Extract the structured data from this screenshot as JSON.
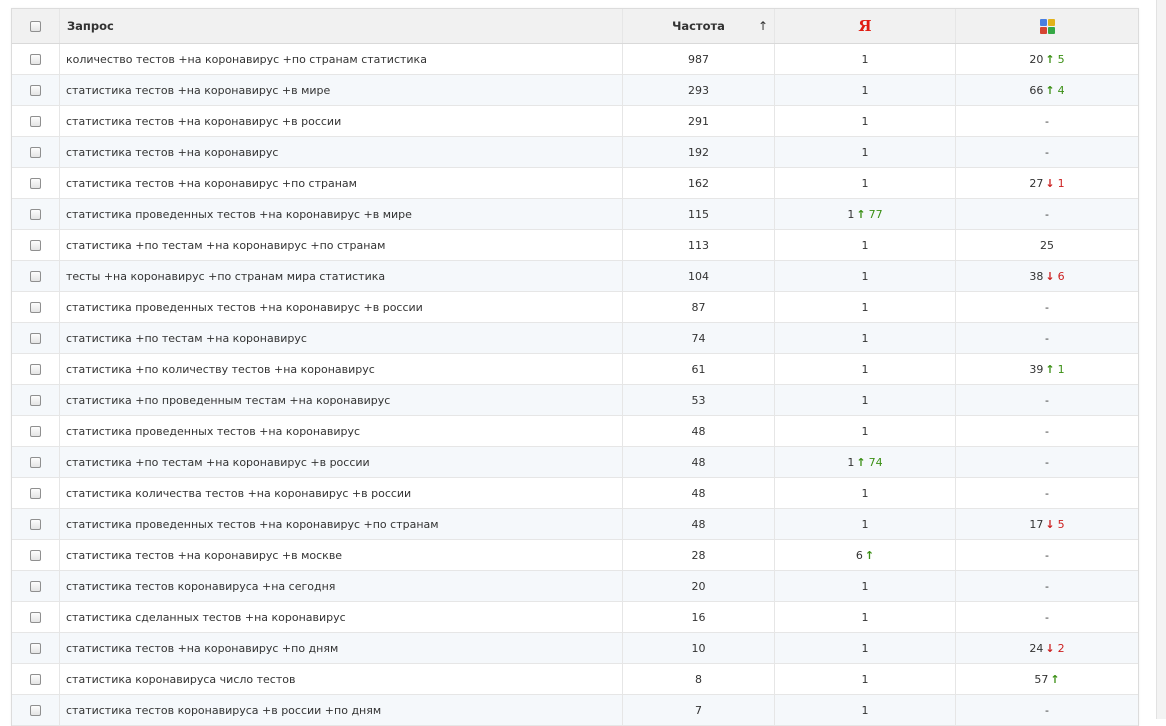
{
  "header": {
    "query_label": "Запрос",
    "frequency_label": "Частота",
    "sort_arrow": "↑",
    "yandex_label": "Я",
    "google_icon": "google-search-icon"
  },
  "colors": {
    "up": "#3a8f14",
    "down": "#cc2020",
    "yandex": "#e01b10",
    "google": [
      "#4a7fe0",
      "#e2b21a",
      "#d64532",
      "#35a845"
    ]
  },
  "rows": [
    {
      "query": "количество тестов +на коронавирус +по странам статистика",
      "frequency": "987",
      "yandex": {
        "pos": "1",
        "dir": "",
        "delta": ""
      },
      "google": {
        "pos": "20",
        "dir": "up",
        "delta": "5"
      }
    },
    {
      "query": "статистика тестов +на коронавирус +в мире",
      "frequency": "293",
      "yandex": {
        "pos": "1",
        "dir": "",
        "delta": ""
      },
      "google": {
        "pos": "66",
        "dir": "up",
        "delta": "4"
      }
    },
    {
      "query": "статистика тестов +на коронавирус +в россии",
      "frequency": "291",
      "yandex": {
        "pos": "1",
        "dir": "",
        "delta": ""
      },
      "google": {
        "pos": "-",
        "dir": "",
        "delta": ""
      }
    },
    {
      "query": "статистика тестов +на коронавирус",
      "frequency": "192",
      "yandex": {
        "pos": "1",
        "dir": "",
        "delta": ""
      },
      "google": {
        "pos": "-",
        "dir": "",
        "delta": ""
      }
    },
    {
      "query": "статистика тестов +на коронавирус +по странам",
      "frequency": "162",
      "yandex": {
        "pos": "1",
        "dir": "",
        "delta": ""
      },
      "google": {
        "pos": "27",
        "dir": "down",
        "delta": "1"
      }
    },
    {
      "query": "статистика проведенных тестов +на коронавирус +в мире",
      "frequency": "115",
      "yandex": {
        "pos": "1",
        "dir": "up",
        "delta": "77"
      },
      "google": {
        "pos": "-",
        "dir": "",
        "delta": ""
      }
    },
    {
      "query": "статистика +по тестам +на коронавирус +по странам",
      "frequency": "113",
      "yandex": {
        "pos": "1",
        "dir": "",
        "delta": ""
      },
      "google": {
        "pos": "25",
        "dir": "",
        "delta": ""
      }
    },
    {
      "query": "тесты +на коронавирус +по странам мира статистика",
      "frequency": "104",
      "yandex": {
        "pos": "1",
        "dir": "",
        "delta": ""
      },
      "google": {
        "pos": "38",
        "dir": "down",
        "delta": "6"
      }
    },
    {
      "query": "статистика проведенных тестов +на коронавирус +в россии",
      "frequency": "87",
      "yandex": {
        "pos": "1",
        "dir": "",
        "delta": ""
      },
      "google": {
        "pos": "-",
        "dir": "",
        "delta": ""
      }
    },
    {
      "query": "статистика +по тестам +на коронавирус",
      "frequency": "74",
      "yandex": {
        "pos": "1",
        "dir": "",
        "delta": ""
      },
      "google": {
        "pos": "-",
        "dir": "",
        "delta": ""
      }
    },
    {
      "query": "статистика +по количеству тестов +на коронавирус",
      "frequency": "61",
      "yandex": {
        "pos": "1",
        "dir": "",
        "delta": ""
      },
      "google": {
        "pos": "39",
        "dir": "up",
        "delta": "1"
      }
    },
    {
      "query": "статистика +по проведенным тестам +на коронавирус",
      "frequency": "53",
      "yandex": {
        "pos": "1",
        "dir": "",
        "delta": ""
      },
      "google": {
        "pos": "-",
        "dir": "",
        "delta": ""
      }
    },
    {
      "query": "статистика проведенных тестов +на коронавирус",
      "frequency": "48",
      "yandex": {
        "pos": "1",
        "dir": "",
        "delta": ""
      },
      "google": {
        "pos": "-",
        "dir": "",
        "delta": ""
      }
    },
    {
      "query": "статистика +по тестам +на коронавирус +в россии",
      "frequency": "48",
      "yandex": {
        "pos": "1",
        "dir": "up",
        "delta": "74"
      },
      "google": {
        "pos": "-",
        "dir": "",
        "delta": ""
      }
    },
    {
      "query": "статистика количества тестов +на коронавирус +в россии",
      "frequency": "48",
      "yandex": {
        "pos": "1",
        "dir": "",
        "delta": ""
      },
      "google": {
        "pos": "-",
        "dir": "",
        "delta": ""
      }
    },
    {
      "query": "статистика проведенных тестов +на коронавирус +по странам",
      "frequency": "48",
      "yandex": {
        "pos": "1",
        "dir": "",
        "delta": ""
      },
      "google": {
        "pos": "17",
        "dir": "down",
        "delta": "5"
      }
    },
    {
      "query": "статистика тестов +на коронавирус +в москве",
      "frequency": "28",
      "yandex": {
        "pos": "6",
        "dir": "up",
        "delta": ""
      },
      "google": {
        "pos": "-",
        "dir": "",
        "delta": ""
      }
    },
    {
      "query": "статистика тестов коронавируса +на сегодня",
      "frequency": "20",
      "yandex": {
        "pos": "1",
        "dir": "",
        "delta": ""
      },
      "google": {
        "pos": "-",
        "dir": "",
        "delta": ""
      }
    },
    {
      "query": "статистика сделанных тестов +на коронавирус",
      "frequency": "16",
      "yandex": {
        "pos": "1",
        "dir": "",
        "delta": ""
      },
      "google": {
        "pos": "-",
        "dir": "",
        "delta": ""
      }
    },
    {
      "query": "статистика тестов +на коронавирус +по дням",
      "frequency": "10",
      "yandex": {
        "pos": "1",
        "dir": "",
        "delta": ""
      },
      "google": {
        "pos": "24",
        "dir": "down",
        "delta": "2"
      }
    },
    {
      "query": "статистика коронавируса число тестов",
      "frequency": "8",
      "yandex": {
        "pos": "1",
        "dir": "",
        "delta": ""
      },
      "google": {
        "pos": "57",
        "dir": "up",
        "delta": ""
      }
    },
    {
      "query": "статистика тестов коронавируса +в россии +по дням",
      "frequency": "7",
      "yandex": {
        "pos": "1",
        "dir": "",
        "delta": ""
      },
      "google": {
        "pos": "-",
        "dir": "",
        "delta": ""
      }
    }
  ]
}
